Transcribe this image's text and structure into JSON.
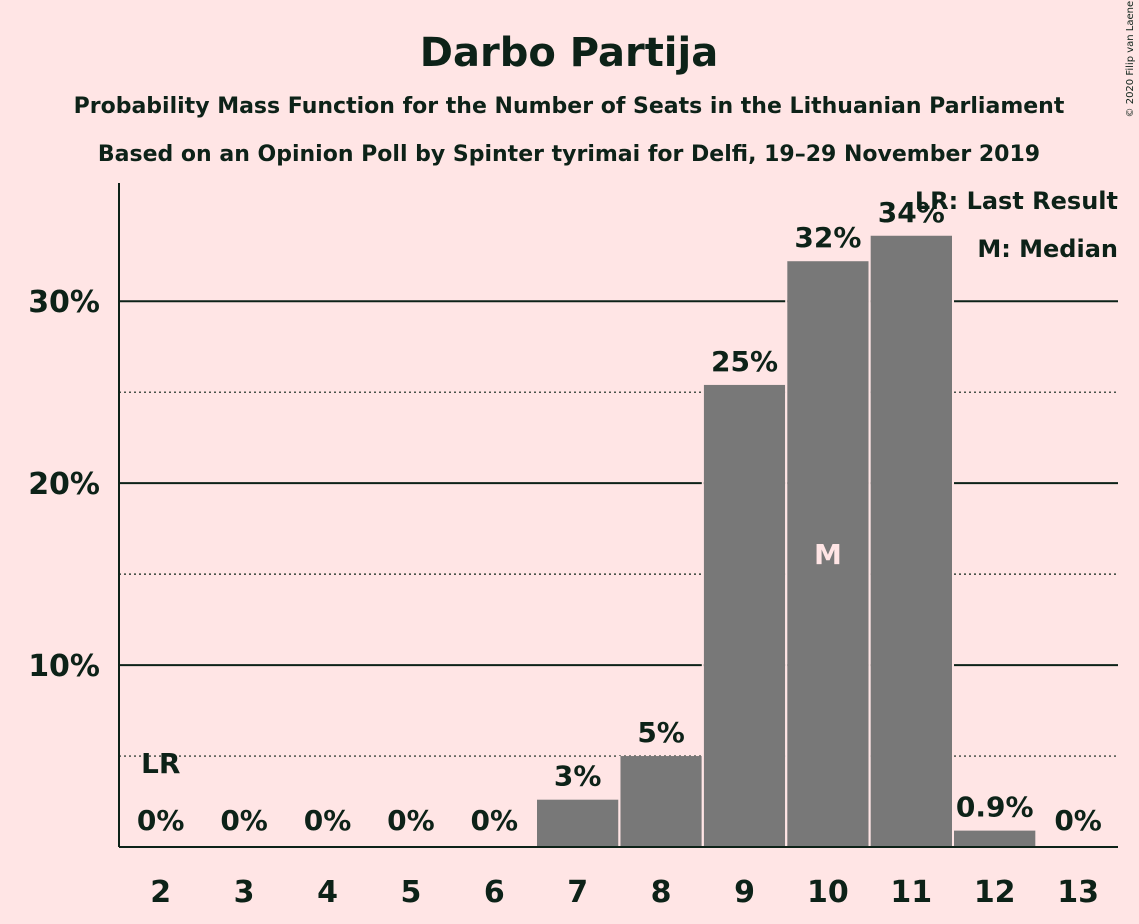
{
  "chart_data": {
    "type": "bar",
    "title": "Darbo Partija",
    "subtitle_1": "Probability Mass Function for the Number of Seats in the Lithuanian Parliament",
    "subtitle_2": "Based on an Opinion Poll by Spinter tyrimai for Delfi, 19–29 November 2019",
    "copyright": "© 2020 Filip van Laenen",
    "categories": [
      "2",
      "3",
      "4",
      "5",
      "6",
      "7",
      "8",
      "9",
      "10",
      "11",
      "12",
      "13"
    ],
    "values": [
      0,
      0,
      0,
      0,
      0,
      2.6,
      5.0,
      25.4,
      32.2,
      33.6,
      0.9,
      0
    ],
    "value_labels": [
      "0%",
      "0%",
      "0%",
      "0%",
      "0%",
      "3%",
      "5%",
      "25%",
      "32%",
      "34%",
      "0.9%",
      "0%"
    ],
    "y_ticks": [
      10,
      20,
      30
    ],
    "y_tick_labels": [
      "10%",
      "20%",
      "30%"
    ],
    "ylim": [
      0,
      36.5
    ],
    "minor_gridlines": [
      5,
      15,
      25
    ],
    "grid": true,
    "last_result": {
      "category": "2",
      "label": "LR"
    },
    "median": {
      "category": "10",
      "label": "M"
    },
    "legend": {
      "position": "top-right",
      "items": [
        "LR: Last Result",
        "M: Median"
      ]
    },
    "colors": {
      "background": "#ffe5e5",
      "bar": "#787878",
      "text": "#0d2218",
      "median_label": "#ffe5e5"
    }
  }
}
